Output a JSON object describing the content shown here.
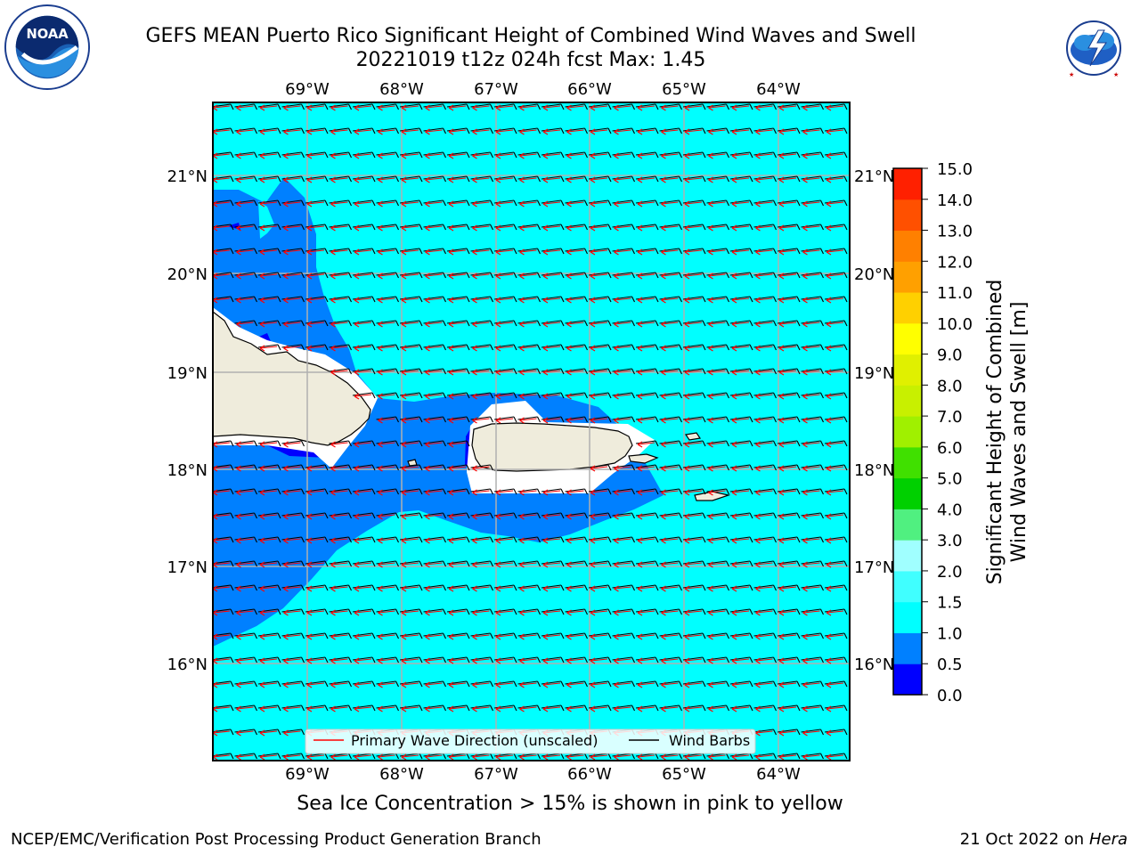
{
  "title_line1": "GEFS MEAN Puerto Rico Significant Height of Combined Wind Waves and Swell",
  "title_line2": "20221019 t12z 024h fcst   Max: 1.45",
  "lon_labels": [
    "69°W",
    "68°W",
    "67°W",
    "66°W",
    "65°W",
    "64°W"
  ],
  "lat_labels": [
    "21°N",
    "20°N",
    "19°N",
    "18°N",
    "17°N",
    "16°N"
  ],
  "legend": {
    "wave_direction": "Primary Wave Direction (unscaled)",
    "wind_barbs": "Wind Barbs"
  },
  "colorbar": {
    "label_line1": "Significant Height of Combined",
    "label_line2": "Wind Waves and Swell [m]",
    "ticks": [
      "0.0",
      "0.5",
      "1.0",
      "1.5",
      "2.0",
      "3.0",
      "4.0",
      "5.0",
      "6.0",
      "7.0",
      "8.0",
      "9.0",
      "10.0",
      "11.0",
      "12.0",
      "13.0",
      "14.0",
      "15.0"
    ],
    "colors": [
      "#0000ff",
      "#0080ff",
      "#00ffff",
      "#40ffff",
      "#a0ffff",
      "#50f080",
      "#00d000",
      "#40e000",
      "#a0f000",
      "#c8f000",
      "#e0f000",
      "#ffff00",
      "#ffd000",
      "#ffa000",
      "#ff8000",
      "#ff5000",
      "#ff2000"
    ]
  },
  "map_colors": {
    "ocean": "#00ffff",
    "band_0_5_1_0": "#0080ff",
    "band_0_0_0_5": "#0000ff",
    "land": "#efecdc",
    "wave_arrow": "#ff0000",
    "wind_barb": "#000000"
  },
  "footnote": "Sea Ice Concentration > 15% is shown in pink to yellow",
  "footer_left": "NCEP/EMC/Verification Post Processing Product Generation Branch",
  "footer_right_prefix": "21 Oct 2022 on",
  "footer_right_machine": "Hera",
  "logos": {
    "noaa": "NOAA",
    "noaa_ring": "NATIONAL OCEANIC AND ATMOSPHERIC ADMINISTRATION · U.S. DEPARTMENT OF COMMERCE",
    "nws_ring": "NATIONAL WEATHER SERVICE"
  }
}
